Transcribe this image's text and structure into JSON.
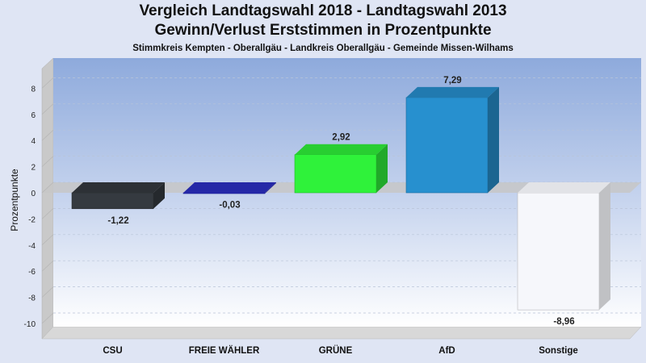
{
  "chart_data": {
    "type": "bar",
    "title": "Vergleich Landtagswahl 2018 - Landtagswahl 2013",
    "subtitle": "Gewinn/Verlust Erststimmen in Prozentpunkte",
    "subtitle2": "Stimmkreis Kempten - Oberallgäu - Landkreis Oberallgäu - Gemeinde Missen-Wilhams",
    "xlabel": "",
    "ylabel": "Prozentpunkte",
    "ylim": [
      -11,
      9
    ],
    "yticks": [
      8,
      6,
      4,
      2,
      0,
      -2,
      -4,
      -6,
      -8,
      -10
    ],
    "categories": [
      "CSU",
      "FREIE WÄHLER",
      "GRÜNE",
      "AfD",
      "Sonstige"
    ],
    "values": [
      -1.22,
      -0.03,
      2.92,
      7.29,
      -8.96
    ],
    "value_labels": [
      "-1,22",
      "-0,03",
      "2,92",
      "7,29",
      "-8,96"
    ],
    "colors": [
      "#353a40",
      "#2b2fc4",
      "#2ff23a",
      "#2790cf",
      "#f6f7fb"
    ],
    "grid": true,
    "legend": "none"
  }
}
